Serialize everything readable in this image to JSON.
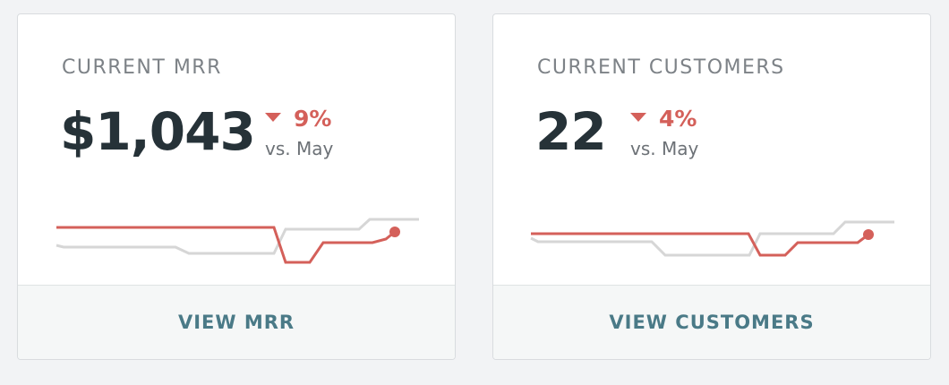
{
  "cards": [
    {
      "title": "CURRENT MRR",
      "value": "$1,043",
      "change": "9%",
      "comparison": "vs. May",
      "link": "VIEW MRR"
    },
    {
      "title": "CURRENT CUSTOMERS",
      "value": "22",
      "change": "4%",
      "comparison": "vs. May",
      "link": "VIEW CUSTOMERS"
    }
  ]
}
